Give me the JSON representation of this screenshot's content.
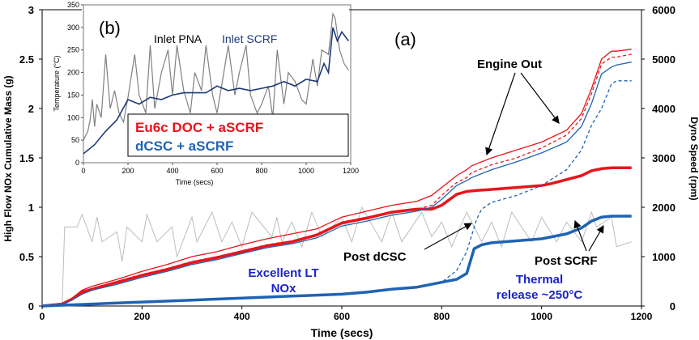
{
  "chart_data": [
    {
      "id": "main",
      "type": "line",
      "panel_label": "(a)",
      "xlabel": "Time (secs)",
      "ylabel_left": "High Flow NOx Cumulative Mass (g)",
      "ylabel_right": "Dyno Speed (rpm)",
      "xlim": [
        0,
        1200
      ],
      "ylim_left": [
        0,
        3
      ],
      "ylim_right": [
        0,
        6000
      ],
      "x_ticks": [
        "0",
        "200",
        "400",
        "600",
        "800",
        "1000",
        "1200"
      ],
      "y_left_ticks": [
        "0",
        "0.5",
        "1",
        "1.5",
        "2",
        "2.5",
        "3"
      ],
      "y_right_ticks": [
        "0",
        "1000",
        "2000",
        "3000",
        "4000",
        "5000",
        "6000"
      ],
      "legend": [
        {
          "label": "Eu6c DOC + aSCRF",
          "color": "#e8141b"
        },
        {
          "label": "dCSC + aSCRF",
          "color": "#1f63b3"
        }
      ],
      "annotations": {
        "engine_out": "Engine Out",
        "post_dcsc": "Post dCSC",
        "post_scrf": "Post SCRF",
        "excellent_lt_line1": "Excellent LT",
        "excellent_lt_line2": "NOx",
        "thermal_line1": "Thermal",
        "thermal_line2": "release ~250°C"
      },
      "series": [
        {
          "style": "thin-solid",
          "color": "#e8141b",
          "x": [
            0,
            40,
            60,
            80,
            100,
            150,
            200,
            250,
            300,
            350,
            400,
            450,
            500,
            550,
            600,
            650,
            700,
            750,
            780,
            800,
            830,
            850,
            860,
            900,
            950,
            1000,
            1050,
            1080,
            1100,
            1120,
            1140,
            1150,
            1180
          ],
          "y": [
            0,
            0.02,
            0.08,
            0.16,
            0.2,
            0.27,
            0.35,
            0.42,
            0.5,
            0.55,
            0.62,
            0.68,
            0.73,
            0.78,
            0.9,
            0.96,
            1.02,
            1.06,
            1.12,
            1.2,
            1.32,
            1.38,
            1.42,
            1.5,
            1.58,
            1.66,
            1.78,
            1.95,
            2.2,
            2.5,
            2.58,
            2.58,
            2.6
          ]
        },
        {
          "style": "dashed",
          "color": "#e8141b",
          "x": [
            0,
            40,
            60,
            80,
            100,
            150,
            200,
            250,
            300,
            350,
            400,
            450,
            500,
            550,
            600,
            650,
            700,
            750,
            780,
            800,
            830,
            850,
            860,
            900,
            950,
            1000,
            1050,
            1080,
            1100,
            1120,
            1140,
            1150,
            1180
          ],
          "y": [
            0,
            0.02,
            0.07,
            0.14,
            0.18,
            0.25,
            0.32,
            0.38,
            0.45,
            0.5,
            0.56,
            0.62,
            0.66,
            0.72,
            0.85,
            0.9,
            0.95,
            0.98,
            1.02,
            1.12,
            1.25,
            1.3,
            1.35,
            1.43,
            1.5,
            1.6,
            1.73,
            1.9,
            2.15,
            2.45,
            2.52,
            2.52,
            2.55
          ]
        },
        {
          "style": "thick-solid",
          "color": "#e8141b",
          "x": [
            0,
            40,
            60,
            80,
            100,
            150,
            200,
            250,
            300,
            350,
            400,
            450,
            500,
            550,
            600,
            650,
            700,
            750,
            780,
            800,
            830,
            850,
            870,
            900,
            950,
            1000,
            1020,
            1050,
            1080,
            1100,
            1120,
            1140,
            1150,
            1180
          ],
          "y": [
            0,
            0.02,
            0.07,
            0.14,
            0.17,
            0.24,
            0.31,
            0.37,
            0.44,
            0.49,
            0.55,
            0.61,
            0.65,
            0.72,
            0.84,
            0.89,
            0.95,
            0.98,
            0.98,
            1.02,
            1.13,
            1.16,
            1.17,
            1.18,
            1.2,
            1.22,
            1.24,
            1.28,
            1.32,
            1.37,
            1.39,
            1.4,
            1.4,
            1.4
          ]
        },
        {
          "style": "thin-solid",
          "color": "#1f63b3",
          "x": [
            0,
            40,
            60,
            80,
            100,
            150,
            200,
            250,
            300,
            350,
            400,
            450,
            500,
            550,
            600,
            650,
            700,
            750,
            780,
            800,
            830,
            850,
            860,
            900,
            950,
            1000,
            1050,
            1080,
            1100,
            1120,
            1140,
            1150,
            1180
          ],
          "y": [
            0,
            0.02,
            0.06,
            0.12,
            0.16,
            0.22,
            0.29,
            0.35,
            0.42,
            0.47,
            0.53,
            0.59,
            0.63,
            0.69,
            0.81,
            0.86,
            0.92,
            0.96,
            1.0,
            1.08,
            1.22,
            1.27,
            1.3,
            1.38,
            1.46,
            1.55,
            1.66,
            1.82,
            2.05,
            2.35,
            2.42,
            2.44,
            2.47
          ]
        },
        {
          "style": "dashed",
          "color": "#1f63b3",
          "x": [
            0,
            100,
            200,
            300,
            400,
            500,
            550,
            600,
            650,
            700,
            750,
            800,
            830,
            850,
            870,
            880,
            900,
            950,
            1000,
            1050,
            1080,
            1100,
            1120,
            1140,
            1150,
            1180
          ],
          "y": [
            0,
            0.02,
            0.04,
            0.06,
            0.08,
            0.1,
            0.11,
            0.12,
            0.14,
            0.17,
            0.19,
            0.24,
            0.36,
            0.55,
            0.88,
            0.98,
            1.05,
            1.12,
            1.22,
            1.38,
            1.58,
            1.83,
            2.0,
            2.25,
            2.28,
            2.28
          ]
        },
        {
          "style": "thick-solid",
          "color": "#1f63b3",
          "x": [
            0,
            100,
            200,
            300,
            400,
            500,
            550,
            600,
            650,
            700,
            750,
            800,
            830,
            850,
            865,
            880,
            900,
            950,
            1000,
            1050,
            1080,
            1100,
            1120,
            1140,
            1150,
            1180
          ],
          "y": [
            0,
            0.02,
            0.04,
            0.06,
            0.08,
            0.1,
            0.11,
            0.12,
            0.14,
            0.17,
            0.19,
            0.24,
            0.27,
            0.33,
            0.58,
            0.62,
            0.64,
            0.66,
            0.68,
            0.73,
            0.79,
            0.86,
            0.9,
            0.91,
            0.91,
            0.91
          ]
        }
      ],
      "dyno_speed_rpm": {
        "color": "#bdbdbd",
        "x": [
          0,
          40,
          45,
          70,
          80,
          100,
          110,
          120,
          150,
          160,
          170,
          200,
          210,
          230,
          260,
          270,
          300,
          310,
          340,
          360,
          380,
          400,
          420,
          460,
          470,
          480,
          500,
          520,
          540,
          560,
          600,
          620,
          640,
          680,
          700,
          720,
          760,
          780,
          800,
          820,
          850,
          880,
          900,
          920,
          940,
          980,
          1000,
          1030,
          1050,
          1080,
          1100,
          1110,
          1140,
          1150,
          1180
        ],
        "y": [
          0,
          0,
          1600,
          1600,
          1850,
          1300,
          1800,
          1300,
          1500,
          900,
          1600,
          1300,
          1850,
          1300,
          1600,
          1000,
          1800,
          1300,
          1900,
          1300,
          1700,
          1200,
          1900,
          1400,
          1800,
          1300,
          1700,
          1200,
          1900,
          1400,
          1800,
          1300,
          2000,
          1300,
          1900,
          1300,
          1900,
          1400,
          1700,
          1200,
          1900,
          1300,
          1700,
          1200,
          1900,
          1300,
          1800,
          1300,
          1700,
          1300,
          1900,
          1600,
          1800,
          1200,
          1300
        ]
      }
    },
    {
      "id": "inset",
      "type": "line",
      "panel_label": "(b)",
      "ylabel": "Temperature (°C)",
      "xlabel": "Time (secs)",
      "xlim": [
        0,
        1200
      ],
      "ylim": [
        0,
        350
      ],
      "x_ticks": [
        "0",
        "200",
        "400",
        "600",
        "800",
        "1000",
        "1200"
      ],
      "y_ticks": [
        "0",
        "50",
        "100",
        "150",
        "200",
        "250",
        "300",
        "350"
      ],
      "series_labels": {
        "pna": "Inlet PNA",
        "scrf": "Inlet SCRF"
      },
      "series": [
        {
          "name": "Inlet PNA",
          "color": "#808080",
          "x": [
            0,
            20,
            30,
            40,
            50,
            60,
            80,
            100,
            120,
            140,
            160,
            180,
            200,
            230,
            250,
            280,
            300,
            320,
            350,
            380,
            400,
            420,
            450,
            480,
            500,
            530,
            550,
            580,
            600,
            630,
            650,
            680,
            700,
            730,
            750,
            780,
            800,
            830,
            850,
            870,
            900,
            920,
            950,
            980,
            1000,
            1030,
            1050,
            1070,
            1100,
            1120,
            1130,
            1150,
            1170,
            1190
          ],
          "y": [
            50,
            70,
            95,
            140,
            80,
            130,
            100,
            240,
            120,
            160,
            110,
            90,
            145,
            240,
            150,
            110,
            260,
            120,
            200,
            250,
            150,
            260,
            160,
            110,
            200,
            160,
            260,
            150,
            110,
            200,
            260,
            150,
            200,
            260,
            150,
            110,
            130,
            170,
            100,
            250,
            130,
            200,
            180,
            140,
            130,
            230,
            170,
            250,
            240,
            330,
            320,
            250,
            220,
            205
          ]
        },
        {
          "name": "Inlet SCRF",
          "color": "#1f3a78",
          "x": [
            0,
            50,
            100,
            150,
            200,
            250,
            300,
            350,
            400,
            450,
            500,
            550,
            600,
            650,
            700,
            750,
            800,
            850,
            900,
            950,
            1000,
            1050,
            1080,
            1100,
            1120,
            1140,
            1160,
            1190
          ],
          "y": [
            20,
            40,
            70,
            95,
            140,
            130,
            145,
            140,
            150,
            155,
            155,
            155,
            170,
            160,
            165,
            160,
            165,
            170,
            180,
            170,
            185,
            180,
            220,
            200,
            300,
            270,
            290,
            270
          ]
        }
      ],
      "legend": [
        {
          "label": "Eu6c DOC + aSCRF",
          "color": "#e8141b"
        },
        {
          "label": "dCSC + aSCRF",
          "color": "#1f63b3"
        }
      ]
    }
  ]
}
